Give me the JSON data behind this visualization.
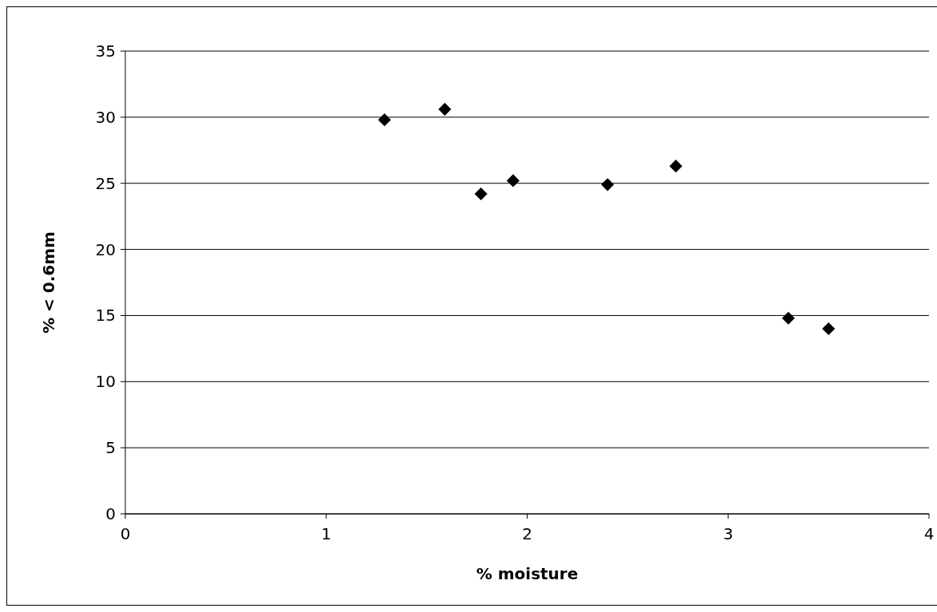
{
  "chart_data": {
    "type": "scatter",
    "xlabel": "% moisture",
    "ylabel": "% < 0.6mm",
    "x": [
      1.29,
      1.59,
      1.77,
      1.93,
      2.4,
      2.74,
      3.3,
      3.5
    ],
    "series": [
      {
        "color": "#000000",
        "values": [
          29.8,
          30.6,
          24.2,
          25.2,
          24.9,
          26.3,
          14.8,
          14.0
        ]
      }
    ],
    "xlim": [
      0,
      4
    ],
    "xticks": [
      0,
      1,
      2,
      3,
      4
    ],
    "ylim": [
      0,
      35
    ],
    "yticks": [
      0,
      5,
      10,
      15,
      20,
      25,
      30,
      35
    ],
    "grid": "y",
    "marker": "diamond"
  }
}
